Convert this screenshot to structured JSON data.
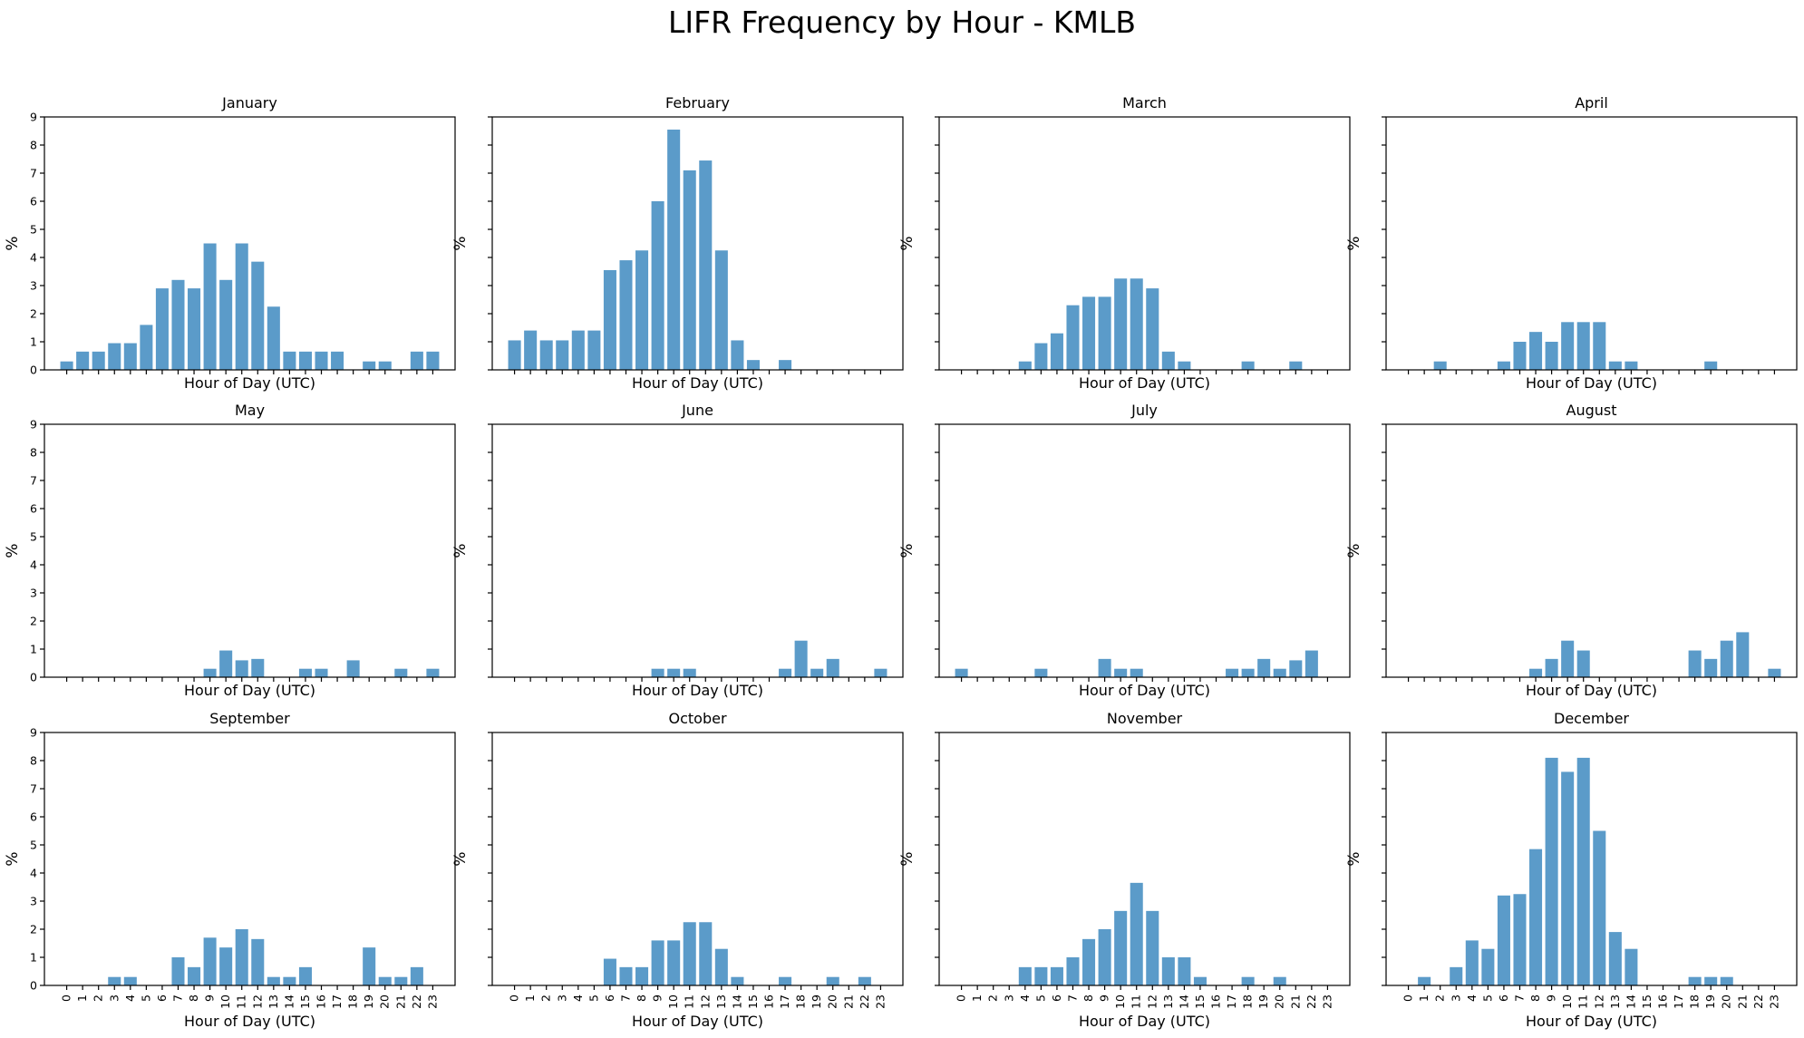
{
  "figure": {
    "title": "LIFR Frequency by Hour - KMLB",
    "bar_color": "#5b9bc9",
    "layout": "3 rows x 4 columns",
    "sharex": true,
    "sharey": true
  },
  "chart_data": [
    {
      "type": "bar",
      "title": "January",
      "xlabel": "Hour of Day (UTC)",
      "ylabel": "%",
      "ylim": [
        0,
        9
      ],
      "categories": [
        "0",
        "1",
        "2",
        "3",
        "4",
        "5",
        "6",
        "7",
        "8",
        "9",
        "10",
        "11",
        "12",
        "13",
        "14",
        "15",
        "16",
        "17",
        "18",
        "19",
        "20",
        "21",
        "22",
        "23"
      ],
      "values": [
        0.3,
        0.65,
        0.65,
        0.95,
        0.95,
        1.6,
        2.9,
        3.2,
        2.9,
        4.5,
        3.2,
        4.5,
        3.85,
        2.25,
        0.65,
        0.65,
        0.65,
        0.65,
        0,
        0.3,
        0.3,
        0,
        0.65,
        0.65
      ]
    },
    {
      "type": "bar",
      "title": "February",
      "xlabel": "Hour of Day (UTC)",
      "ylabel": "%",
      "ylim": [
        0,
        9
      ],
      "categories": [
        "0",
        "1",
        "2",
        "3",
        "4",
        "5",
        "6",
        "7",
        "8",
        "9",
        "10",
        "11",
        "12",
        "13",
        "14",
        "15",
        "16",
        "17",
        "18",
        "19",
        "20",
        "21",
        "22",
        "23"
      ],
      "values": [
        1.05,
        1.4,
        1.05,
        1.05,
        1.4,
        1.4,
        3.55,
        3.9,
        4.25,
        6.0,
        8.55,
        7.1,
        7.45,
        4.25,
        1.05,
        0.35,
        0,
        0.35,
        0,
        0,
        0,
        0,
        0,
        0
      ]
    },
    {
      "type": "bar",
      "title": "March",
      "xlabel": "Hour of Day (UTC)",
      "ylabel": "%",
      "ylim": [
        0,
        9
      ],
      "categories": [
        "0",
        "1",
        "2",
        "3",
        "4",
        "5",
        "6",
        "7",
        "8",
        "9",
        "10",
        "11",
        "12",
        "13",
        "14",
        "15",
        "16",
        "17",
        "18",
        "19",
        "20",
        "21",
        "22",
        "23"
      ],
      "values": [
        0,
        0,
        0,
        0,
        0.3,
        0.95,
        1.3,
        2.3,
        2.6,
        2.6,
        3.25,
        3.25,
        2.9,
        0.65,
        0.3,
        0,
        0,
        0,
        0.3,
        0,
        0,
        0.3,
        0,
        0
      ]
    },
    {
      "type": "bar",
      "title": "April",
      "xlabel": "Hour of Day (UTC)",
      "ylabel": "%",
      "ylim": [
        0,
        9
      ],
      "categories": [
        "0",
        "1",
        "2",
        "3",
        "4",
        "5",
        "6",
        "7",
        "8",
        "9",
        "10",
        "11",
        "12",
        "13",
        "14",
        "15",
        "16",
        "17",
        "18",
        "19",
        "20",
        "21",
        "22",
        "23"
      ],
      "values": [
        0,
        0,
        0.3,
        0,
        0,
        0,
        0.3,
        1.0,
        1.35,
        1.0,
        1.7,
        1.7,
        1.7,
        0.3,
        0.3,
        0,
        0,
        0,
        0,
        0.3,
        0,
        0,
        0,
        0
      ]
    },
    {
      "type": "bar",
      "title": "May",
      "xlabel": "Hour of Day (UTC)",
      "ylabel": "%",
      "ylim": [
        0,
        9
      ],
      "categories": [
        "0",
        "1",
        "2",
        "3",
        "4",
        "5",
        "6",
        "7",
        "8",
        "9",
        "10",
        "11",
        "12",
        "13",
        "14",
        "15",
        "16",
        "17",
        "18",
        "19",
        "20",
        "21",
        "22",
        "23"
      ],
      "values": [
        0,
        0,
        0,
        0,
        0,
        0,
        0,
        0,
        0,
        0.3,
        0.95,
        0.6,
        0.65,
        0,
        0,
        0.3,
        0.3,
        0,
        0.6,
        0,
        0,
        0.3,
        0,
        0.3
      ]
    },
    {
      "type": "bar",
      "title": "June",
      "xlabel": "Hour of Day (UTC)",
      "ylabel": "%",
      "ylim": [
        0,
        9
      ],
      "categories": [
        "0",
        "1",
        "2",
        "3",
        "4",
        "5",
        "6",
        "7",
        "8",
        "9",
        "10",
        "11",
        "12",
        "13",
        "14",
        "15",
        "16",
        "17",
        "18",
        "19",
        "20",
        "21",
        "22",
        "23"
      ],
      "values": [
        0,
        0,
        0,
        0,
        0,
        0,
        0,
        0,
        0,
        0.3,
        0.3,
        0.3,
        0,
        0,
        0,
        0,
        0,
        0.3,
        1.3,
        0.3,
        0.65,
        0,
        0,
        0.3
      ]
    },
    {
      "type": "bar",
      "title": "July",
      "xlabel": "Hour of Day (UTC)",
      "ylabel": "%",
      "ylim": [
        0,
        9
      ],
      "categories": [
        "0",
        "1",
        "2",
        "3",
        "4",
        "5",
        "6",
        "7",
        "8",
        "9",
        "10",
        "11",
        "12",
        "13",
        "14",
        "15",
        "16",
        "17",
        "18",
        "19",
        "20",
        "21",
        "22",
        "23"
      ],
      "values": [
        0.3,
        0,
        0,
        0,
        0,
        0.3,
        0,
        0,
        0,
        0.65,
        0.3,
        0.3,
        0,
        0,
        0,
        0,
        0,
        0.3,
        0.3,
        0.65,
        0.3,
        0.6,
        0.95,
        0
      ]
    },
    {
      "type": "bar",
      "title": "August",
      "xlabel": "Hour of Day (UTC)",
      "ylabel": "%",
      "ylim": [
        0,
        9
      ],
      "categories": [
        "0",
        "1",
        "2",
        "3",
        "4",
        "5",
        "6",
        "7",
        "8",
        "9",
        "10",
        "11",
        "12",
        "13",
        "14",
        "15",
        "16",
        "17",
        "18",
        "19",
        "20",
        "21",
        "22",
        "23"
      ],
      "values": [
        0,
        0,
        0,
        0,
        0,
        0,
        0,
        0,
        0.3,
        0.65,
        1.3,
        0.95,
        0,
        0,
        0,
        0,
        0,
        0,
        0.95,
        0.65,
        1.3,
        1.6,
        0,
        0.3
      ]
    },
    {
      "type": "bar",
      "title": "September",
      "xlabel": "Hour of Day (UTC)",
      "ylabel": "%",
      "ylim": [
        0,
        9
      ],
      "categories": [
        "0",
        "1",
        "2",
        "3",
        "4",
        "5",
        "6",
        "7",
        "8",
        "9",
        "10",
        "11",
        "12",
        "13",
        "14",
        "15",
        "16",
        "17",
        "18",
        "19",
        "20",
        "21",
        "22",
        "23"
      ],
      "values": [
        0,
        0,
        0,
        0.3,
        0.3,
        0,
        0,
        1.0,
        0.65,
        1.7,
        1.35,
        2.0,
        1.65,
        0.3,
        0.3,
        0.65,
        0,
        0,
        0,
        1.35,
        0.3,
        0.3,
        0.65,
        0
      ]
    },
    {
      "type": "bar",
      "title": "October",
      "xlabel": "Hour of Day (UTC)",
      "ylabel": "%",
      "ylim": [
        0,
        9
      ],
      "categories": [
        "0",
        "1",
        "2",
        "3",
        "4",
        "5",
        "6",
        "7",
        "8",
        "9",
        "10",
        "11",
        "12",
        "13",
        "14",
        "15",
        "16",
        "17",
        "18",
        "19",
        "20",
        "21",
        "22",
        "23"
      ],
      "values": [
        0,
        0,
        0,
        0,
        0,
        0,
        0.95,
        0.65,
        0.65,
        1.6,
        1.6,
        2.25,
        2.25,
        1.3,
        0.3,
        0,
        0,
        0.3,
        0,
        0,
        0.3,
        0,
        0.3,
        0
      ]
    },
    {
      "type": "bar",
      "title": "November",
      "xlabel": "Hour of Day (UTC)",
      "ylabel": "%",
      "ylim": [
        0,
        9
      ],
      "categories": [
        "0",
        "1",
        "2",
        "3",
        "4",
        "5",
        "6",
        "7",
        "8",
        "9",
        "10",
        "11",
        "12",
        "13",
        "14",
        "15",
        "16",
        "17",
        "18",
        "19",
        "20",
        "21",
        "22",
        "23"
      ],
      "values": [
        0,
        0,
        0,
        0,
        0.65,
        0.65,
        0.65,
        1.0,
        1.65,
        2.0,
        2.65,
        3.65,
        2.65,
        1.0,
        1.0,
        0.3,
        0,
        0,
        0.3,
        0,
        0.3,
        0,
        0,
        0
      ]
    },
    {
      "type": "bar",
      "title": "December",
      "xlabel": "Hour of Day (UTC)",
      "ylabel": "%",
      "ylim": [
        0,
        9
      ],
      "categories": [
        "0",
        "1",
        "2",
        "3",
        "4",
        "5",
        "6",
        "7",
        "8",
        "9",
        "10",
        "11",
        "12",
        "13",
        "14",
        "15",
        "16",
        "17",
        "18",
        "19",
        "20",
        "21",
        "22",
        "23"
      ],
      "values": [
        0,
        0.3,
        0,
        0.65,
        1.6,
        1.3,
        3.2,
        3.25,
        4.85,
        8.1,
        7.6,
        8.1,
        5.5,
        1.9,
        1.3,
        0,
        0,
        0,
        0.3,
        0.3,
        0.3,
        0,
        0,
        0
      ]
    }
  ]
}
